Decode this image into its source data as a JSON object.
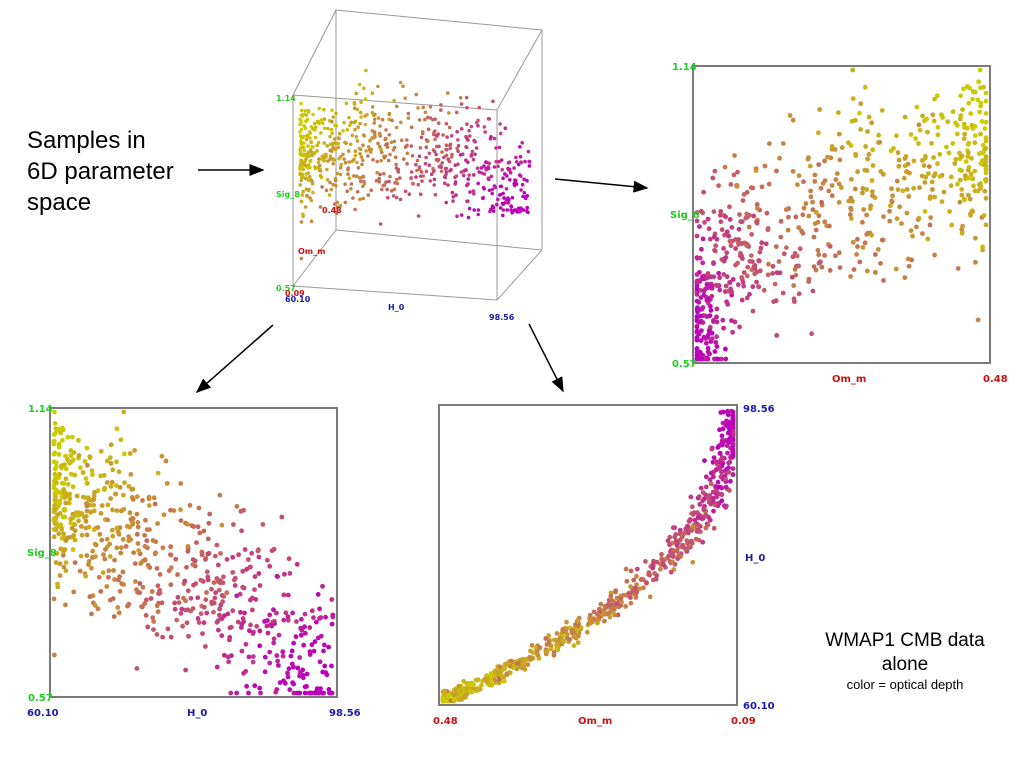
{
  "caption_left": [
    "Samples in",
    "6D parameter",
    "space"
  ],
  "caption_right": {
    "title_line1": "WMAP1 CMB data",
    "title_line2": "alone",
    "subtitle": "color = optical depth"
  },
  "colors": {
    "om_label": "#cc1111",
    "h0_label": "#1a1aa8",
    "sig_label": "#22cc22",
    "low_tau": "#cccc00",
    "high_tau": "#bb00bb",
    "frame": "#7a7a7a"
  },
  "chart_data": [
    {
      "id": "cube3d",
      "type": "scatter",
      "title": "",
      "axes": {
        "H_0": {
          "label": "H_0",
          "ticks": [
            "60.10",
            "98.56"
          ],
          "range": [
            60.1,
            98.56
          ]
        },
        "Om_m": {
          "label": "Om_m",
          "ticks": [
            "0.09",
            "0.48"
          ],
          "range": [
            0.09,
            0.48
          ]
        },
        "Sig_8": {
          "label": "Sig_8",
          "ticks": [
            "0.57",
            "1.14"
          ],
          "range": [
            0.57,
            1.14
          ]
        }
      },
      "note": "3D projection of the same MCMC samples; colour = optical depth"
    },
    {
      "id": "sig8_vs_omm",
      "type": "scatter",
      "xlabel": "Om_m",
      "ylabel": "Sig_8",
      "x_ticks": [
        "0.09",
        "0.48"
      ],
      "y_ticks": [
        "0.57",
        "1.14"
      ],
      "xlim": [
        0.09,
        0.48
      ],
      "ylim": [
        0.57,
        1.14
      ],
      "trend": "positive correlation; Sig_8 rises with Om_m, high optical depth at low Om_m / low Sig_8"
    },
    {
      "id": "sig8_vs_h0",
      "type": "scatter",
      "xlabel": "H_0",
      "ylabel": "Sig_8",
      "x_ticks": [
        "60.10",
        "98.56"
      ],
      "y_ticks": [
        "0.57",
        "1.14"
      ],
      "xlim": [
        60.1,
        98.56
      ],
      "ylim": [
        0.57,
        1.14
      ],
      "trend": "negative correlation; Sig_8 falls as H_0 rises"
    },
    {
      "id": "h0_vs_omm",
      "type": "scatter",
      "xlabel": "Om_m",
      "ylabel": "H_0",
      "x_ticks": [
        "0.48",
        "0.09"
      ],
      "y_ticks": [
        "60.10",
        "98.56"
      ],
      "xlim": [
        0.48,
        0.09
      ],
      "ylim": [
        60.1,
        98.56
      ],
      "trend": "tight curved degeneracy; H_0 increases steeply as Om_m decreases"
    }
  ]
}
